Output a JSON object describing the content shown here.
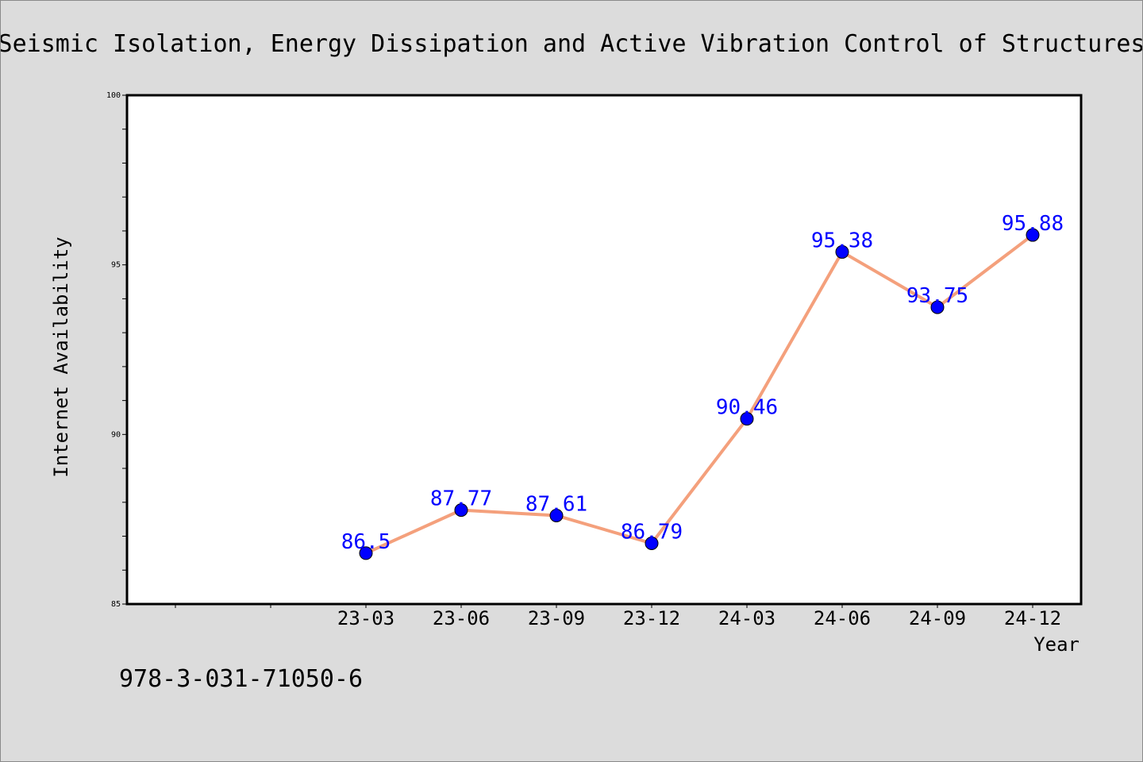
{
  "chart_data": {
    "type": "line",
    "title": "Seismic Isolation, Energy Dissipation and Active Vibration Control of Structures",
    "xlabel": "Year",
    "ylabel": "Internet Availability",
    "categories": [
      "23-03",
      "23-06",
      "23-09",
      "23-12",
      "24-03",
      "24-06",
      "24-09",
      "24-12"
    ],
    "series": [
      {
        "values": [
          86.5,
          87.77,
          87.61,
          86.79,
          90.46,
          95.38,
          93.75,
          95.88
        ]
      }
    ],
    "data_labels": [
      "86.5",
      "87.77",
      "87.61",
      "86.79",
      "90.46",
      "95.38",
      "93.75",
      "95.88"
    ],
    "ylim": [
      85,
      100
    ],
    "yticks": [
      "85",
      "90",
      "95",
      "100"
    ],
    "grid": false,
    "legend": "none",
    "colors": {
      "line": "#f4a07c",
      "marker": "#0000ff",
      "label": "#0000ff",
      "background": "#dcdcdc",
      "plot_background": "#ffffff"
    }
  },
  "footer_text": "978-3-031-71050-6"
}
